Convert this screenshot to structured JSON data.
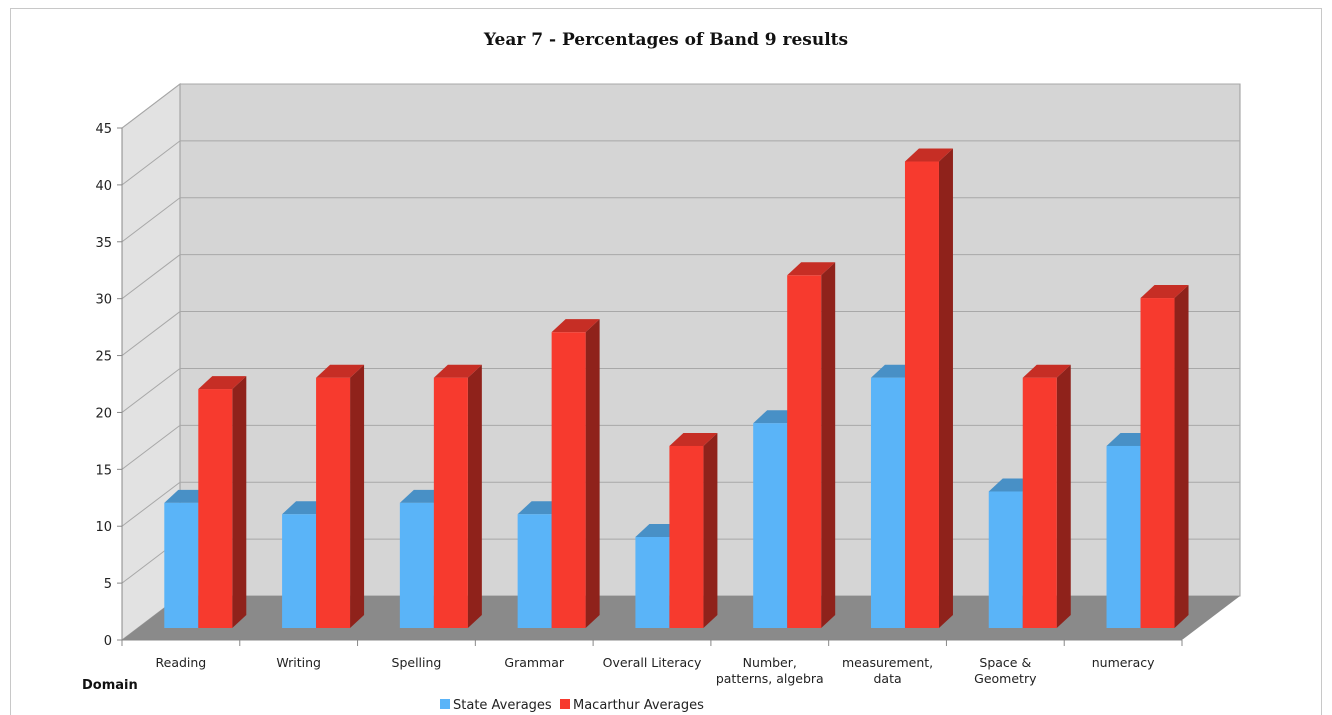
{
  "chart_data": {
    "type": "bar",
    "title": "Year 7 - Percentages of Band 9 results",
    "xlabel": "Domain",
    "ylabel": "",
    "ylim": [
      0,
      45
    ],
    "yticks": [
      0,
      5,
      10,
      15,
      20,
      25,
      30,
      35,
      40,
      45
    ],
    "categories": [
      [
        "Reading"
      ],
      [
        "Writing"
      ],
      [
        "Spelling"
      ],
      [
        "Grammar"
      ],
      [
        "Overall Literacy"
      ],
      [
        "Number,",
        "patterns, algebra"
      ],
      [
        "measurement,",
        "data"
      ],
      [
        "Space &",
        "Geometry"
      ],
      [
        "numeracy"
      ]
    ],
    "series": [
      {
        "name": "State Averages",
        "color": "#5ab4f8",
        "values": [
          11,
          10,
          11,
          10,
          8,
          18,
          22,
          12,
          16
        ]
      },
      {
        "name": "Macarthur Averages",
        "color": "#f73a2e",
        "values": [
          21,
          22,
          22,
          26,
          16,
          31,
          41,
          22,
          29
        ]
      }
    ],
    "grid": true,
    "legend": "bottom",
    "style": "3d-column"
  }
}
